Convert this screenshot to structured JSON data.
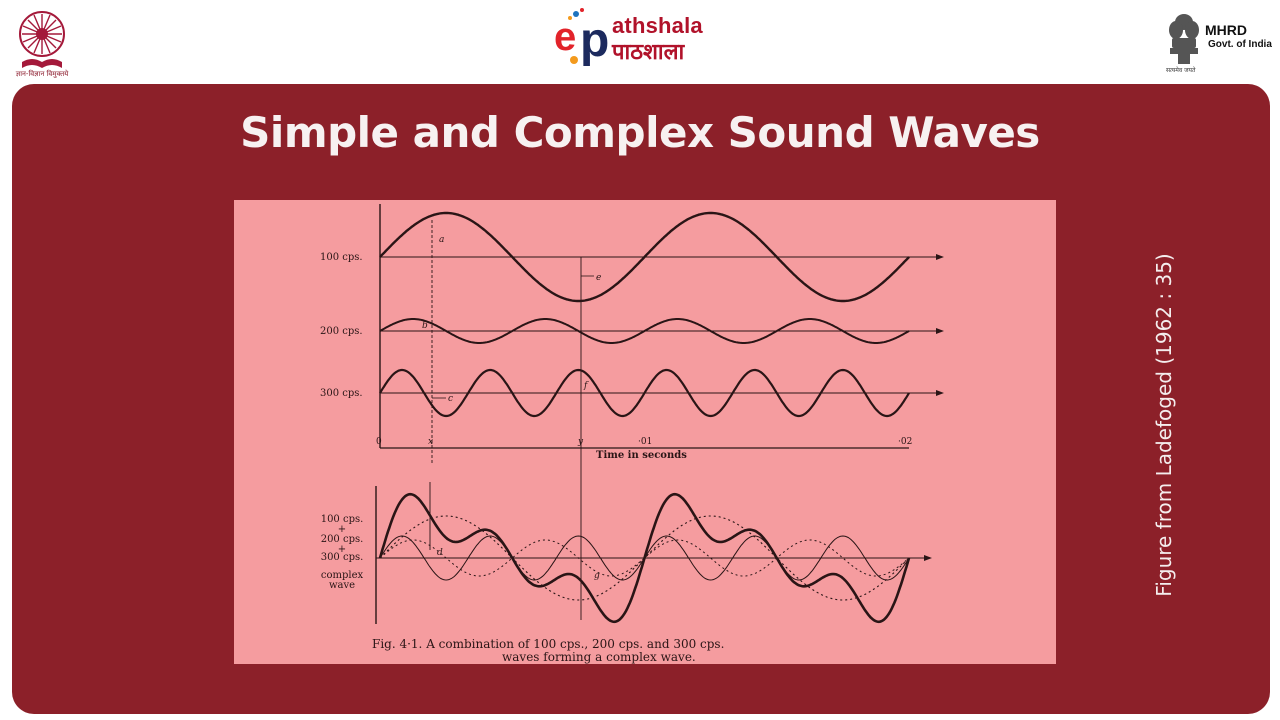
{
  "header": {
    "ugc_caption": "ज्ञान-विज्ञान विमुक्तये",
    "epathshala_en": "athshala",
    "epathshala_hi": "पाठशाला",
    "mhrd_title": "MHRD",
    "mhrd_subtitle": "Govt. of India",
    "mhrd_motto": "सत्यमेव जयते"
  },
  "slide": {
    "title": "Simple and Complex Sound Waves",
    "side_caption": "Figure from Ladefoged (1962 : 35)"
  },
  "figure": {
    "row_labels": [
      "100 cps.",
      "200 cps.",
      "300 cps."
    ],
    "complex_label_lines": [
      "100 cps.",
      "+",
      "200 cps.",
      "+",
      "300 cps.",
      "complex",
      "wave"
    ],
    "point_labels": [
      "a",
      "b",
      "c",
      "d",
      "e",
      "f",
      "g"
    ],
    "time_ticks": [
      "0",
      "x",
      "y",
      "·01",
      "·02"
    ],
    "time_axis_label": "Time in seconds",
    "caption_line1": "Fig. 4·1. A combination of 100 cps., 200 cps. and 300 cps.",
    "caption_line2": "waves forming a complex wave."
  },
  "colors": {
    "slide_bg": "#8c2029",
    "figure_bg": "#f59c9f",
    "ink": "#2a1516",
    "brand_red": "#b1122a"
  }
}
